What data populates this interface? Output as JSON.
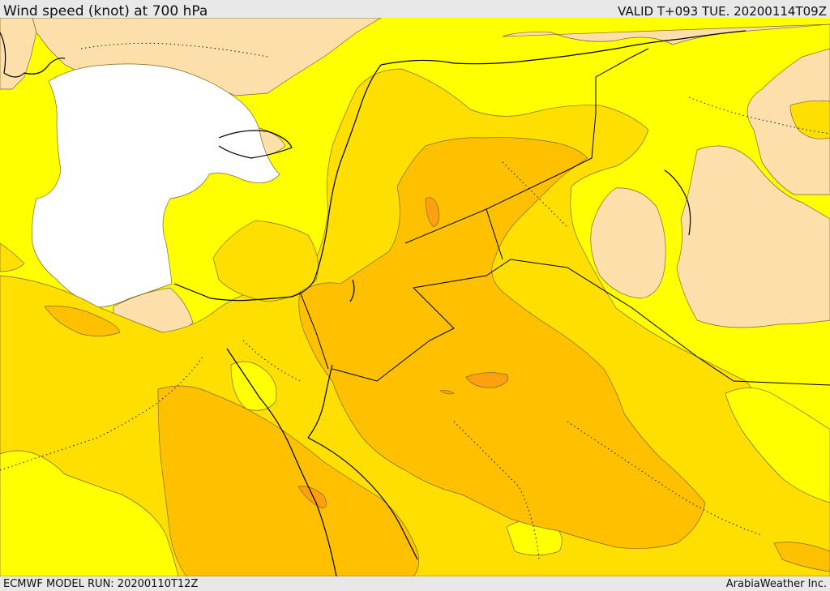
{
  "header": {
    "title": "Wind speed (knot) at 700 hPa",
    "valid": "VALID T+093 TUE. 20200114T09Z"
  },
  "footer": {
    "model_run": "ECMWF MODEL RUN: 20200110T12Z",
    "credit": "ArabiaWeather Inc."
  },
  "colors": {
    "calm": "#ffffff",
    "low": "#fddfaa",
    "light": "#ffff00",
    "moderate": "#ffdf00",
    "strong": "#ffc000",
    "very_strong": "#ffa010"
  }
}
